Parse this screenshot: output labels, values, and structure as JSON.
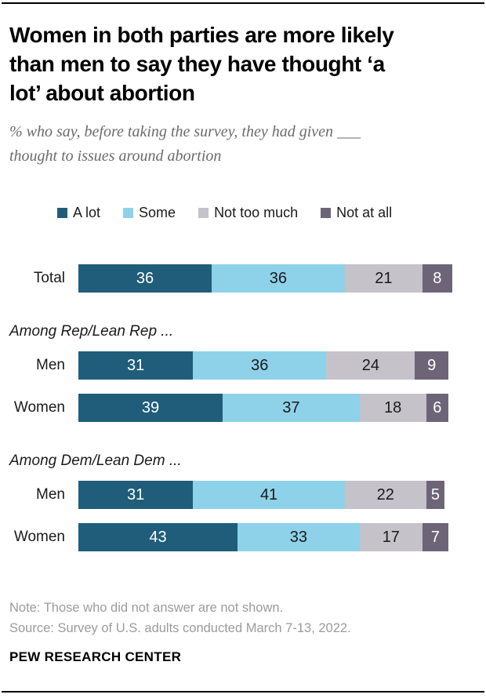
{
  "header": {
    "title": "Women in both parties are more likely than men to say they have thought ‘a lot’ about abortion",
    "title_lines": [
      "Women in both parties are more likely",
      "than men to say they have thought ‘a",
      "lot’ about abortion"
    ],
    "subtitle_lines": [
      "% who say, before taking the survey, they had given ___",
      "thought to issues around abortion"
    ]
  },
  "chart_data": {
    "type": "bar",
    "stacked": true,
    "orientation": "horizontal",
    "unit": "percent",
    "title": "Women in both parties are more likely than men to say they have thought ‘a lot’ about abortion",
    "subtitle": "% who say, before taking the survey, they had given ___ thought to issues around abortion",
    "xlim": [
      0,
      101
    ],
    "grid": false,
    "legend_position": "top",
    "legend": [
      {
        "label": "A lot",
        "color": "#1f5d7a",
        "value_text_color": "#ffffff"
      },
      {
        "label": "Some",
        "color": "#8ed2e9",
        "value_text_color": "#1a1a1a"
      },
      {
        "label": "Not too much",
        "color": "#c5c2ca",
        "value_text_color": "#1a1a1a"
      },
      {
        "label": "Not at all",
        "color": "#6d6577",
        "value_text_color": "#ffffff"
      }
    ],
    "groups": [
      {
        "section": "",
        "rows": [
          {
            "label": "Total",
            "values": [
              36,
              36,
              21,
              8
            ]
          }
        ]
      },
      {
        "section": "Among Rep/Lean Rep ...",
        "rows": [
          {
            "label": "Men",
            "values": [
              31,
              36,
              24,
              9
            ]
          },
          {
            "label": "Women",
            "values": [
              39,
              37,
              18,
              6
            ]
          }
        ]
      },
      {
        "section": "Among Dem/Lean Dem ...",
        "rows": [
          {
            "label": "Men",
            "values": [
              31,
              41,
              22,
              5
            ]
          },
          {
            "label": "Women",
            "values": [
              43,
              33,
              17,
              7
            ]
          }
        ]
      }
    ]
  },
  "footer": {
    "note": "Note: Those who did not answer are not shown.",
    "source": "Source: Survey of U.S. adults conducted March 7-13, 2022.",
    "brand": "PEW RESEARCH CENTER"
  },
  "colors": {
    "rule": "#000000",
    "title_text": "#000000",
    "subtitle_text": "#6b6b6b",
    "note_text": "#9b9b9b",
    "background": "#ffffff"
  }
}
